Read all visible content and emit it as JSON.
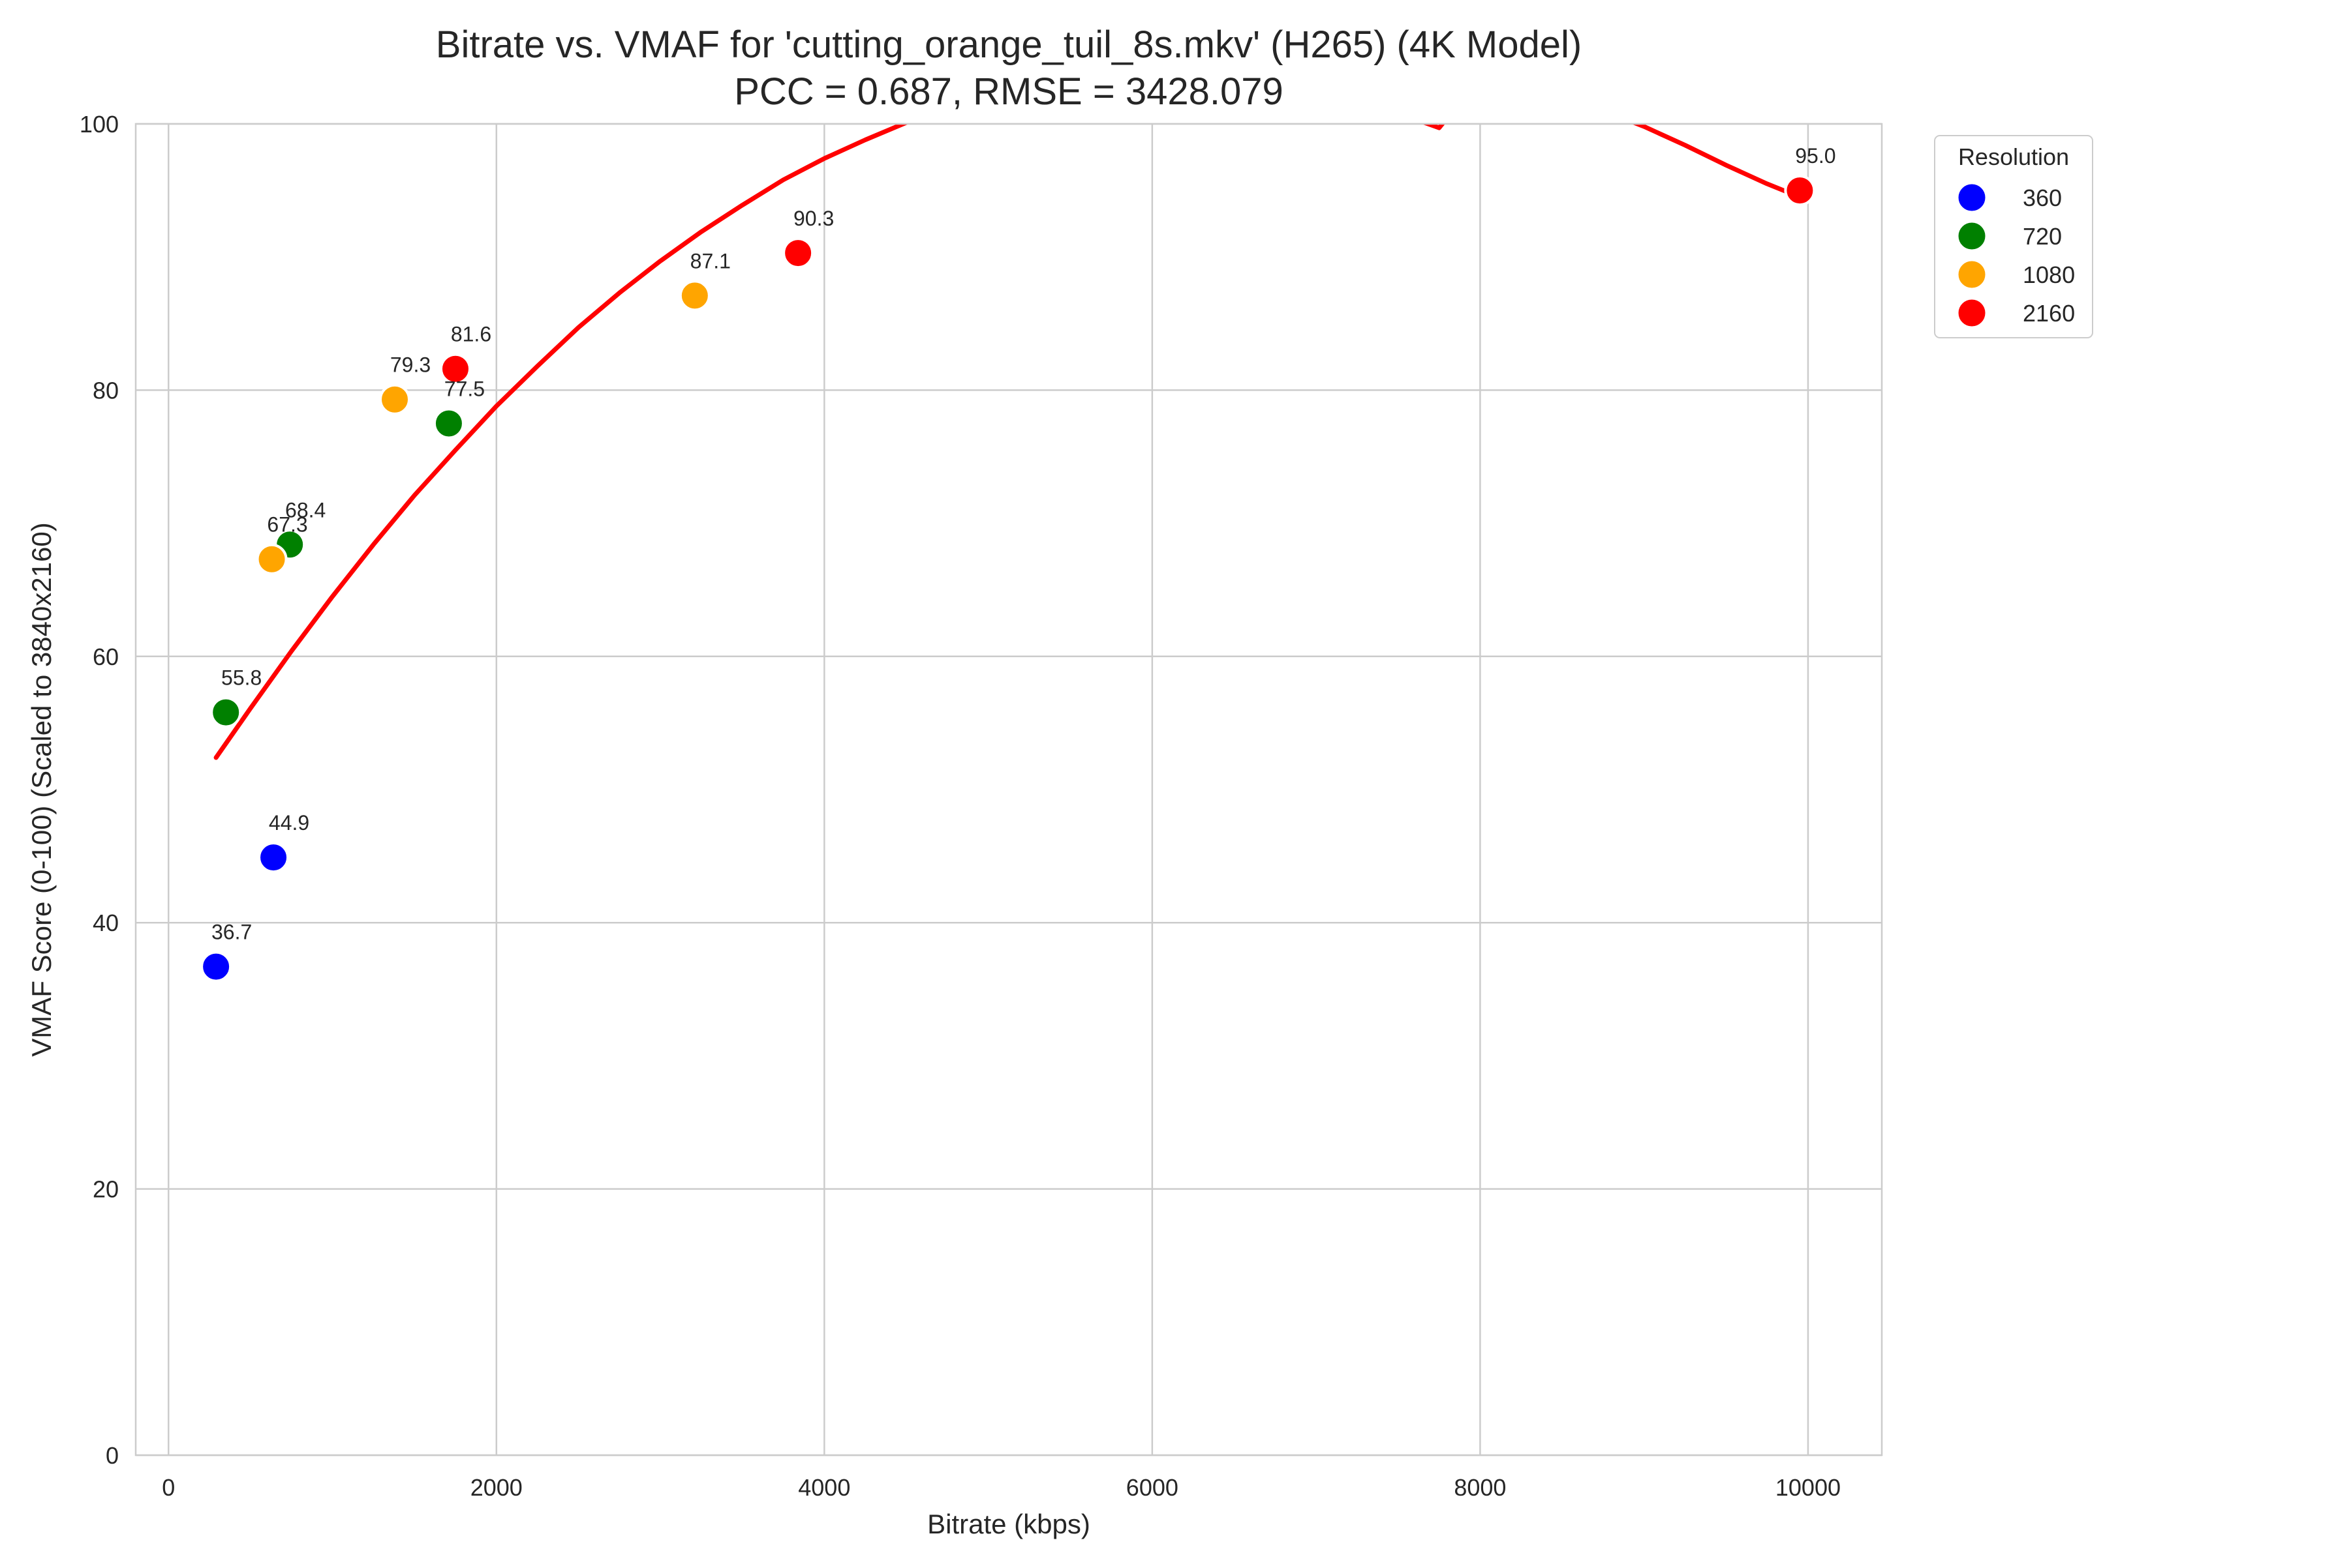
{
  "chart_data": {
    "type": "scatter",
    "title_line1": "Bitrate vs. VMAF for 'cutting_orange_tuil_8s.mkv' (H265) (4K Model)",
    "title_line2": "PCC = 0.687, RMSE = 3428.079",
    "xlabel": "Bitrate (kbps)",
    "ylabel": "VMAF Score (0-100) (Scaled to 3840x2160)",
    "xlim": [
      -200,
      10450
    ],
    "ylim": [
      0,
      100
    ],
    "x_ticks": [
      0,
      2000,
      4000,
      6000,
      8000,
      10000
    ],
    "y_ticks": [
      0,
      20,
      40,
      60,
      80,
      100
    ],
    "grid": true,
    "legend": {
      "title": "Resolution",
      "placement": "outside-top-right",
      "entries": [
        {
          "label": "360",
          "color": "#0000ff"
        },
        {
          "label": "720",
          "color": "#008000"
        },
        {
          "label": "1080",
          "color": "#ffa500"
        },
        {
          "label": "2160",
          "color": "#ff0000"
        }
      ]
    },
    "points": [
      {
        "x": 290,
        "y": 36.7,
        "label": "36.7",
        "resolution": "360"
      },
      {
        "x": 640,
        "y": 44.9,
        "label": "44.9",
        "resolution": "360"
      },
      {
        "x": 350,
        "y": 55.8,
        "label": "55.8",
        "resolution": "720"
      },
      {
        "x": 740,
        "y": 68.4,
        "label": "68.4",
        "resolution": "720"
      },
      {
        "x": 1710,
        "y": 77.5,
        "label": "77.5",
        "resolution": "720"
      },
      {
        "x": 630,
        "y": 67.3,
        "label": "67.3",
        "resolution": "1080"
      },
      {
        "x": 1380,
        "y": 79.3,
        "label": "79.3",
        "resolution": "1080"
      },
      {
        "x": 3210,
        "y": 87.1,
        "label": "87.1",
        "resolution": "1080"
      },
      {
        "x": 1750,
        "y": 81.6,
        "label": "81.6",
        "resolution": "2160"
      },
      {
        "x": 3840,
        "y": 90.3,
        "label": "90.3",
        "resolution": "2160"
      },
      {
        "x": 9950,
        "y": 95.0,
        "label": "95.0",
        "resolution": "2160"
      }
    ],
    "fit_curve": {
      "color": "#ff0000",
      "x": [
        290,
        500,
        750,
        1000,
        1250,
        1500,
        1750,
        2000,
        2250,
        2500,
        2750,
        3000,
        3250,
        3500,
        3750,
        4000,
        4250,
        4500,
        4750,
        5000,
        5250,
        5500,
        5750,
        6000,
        6250,
        6500,
        6750,
        7000,
        7250,
        7500,
        7750,
        8000,
        8250,
        8500,
        8750,
        9000,
        9250,
        9500,
        9750,
        9950
      ],
      "y": [
        52.4,
        56.1,
        60.4,
        64.5,
        68.4,
        72.1,
        75.5,
        78.8,
        81.8,
        84.7,
        87.3,
        89.7,
        91.9,
        93.9,
        95.8,
        97.4,
        98.8,
        100.1,
        101.1,
        102.0,
        102.7,
        103.2,
        103.5,
        103.6,
        103.6,
        103.4,
        103.0,
        102.4,
        101.7,
        100.8,
        99.7,
        103.5,
        102.8,
        102.0,
        101.0,
        99.8,
        98.4,
        96.9,
        95.5,
        94.5
      ]
    }
  }
}
